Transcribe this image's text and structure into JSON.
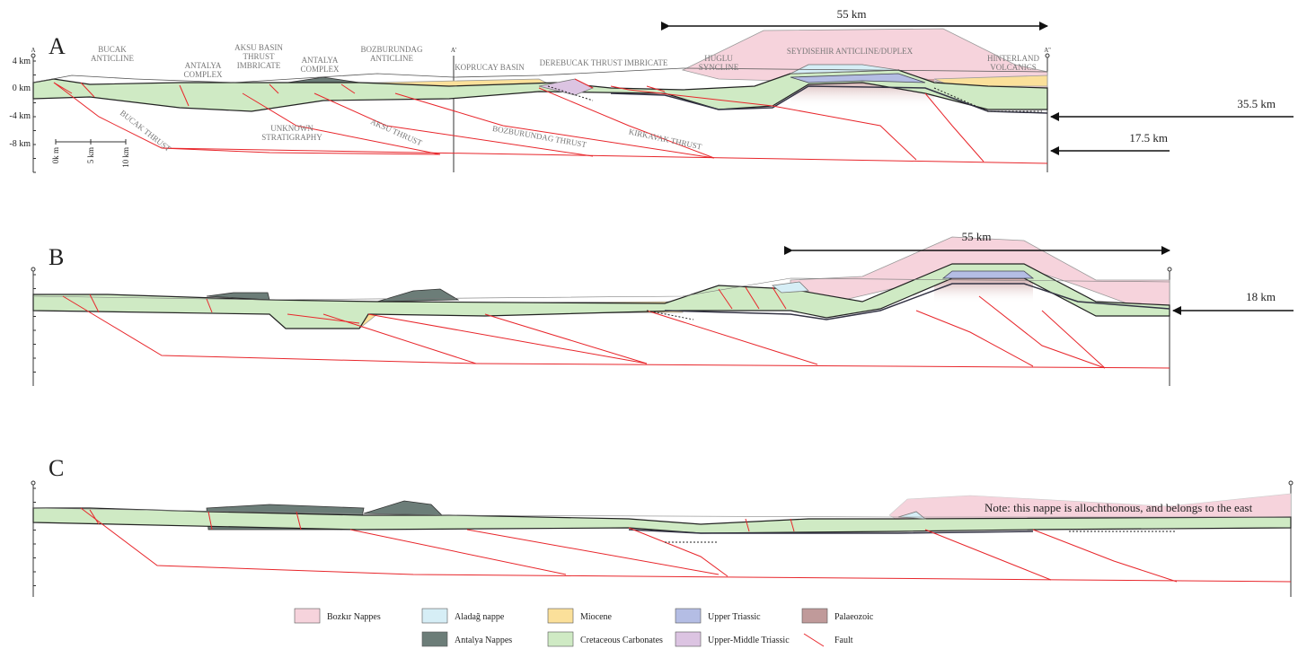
{
  "panels": [
    {
      "letter": "A",
      "section_ends": [
        "A",
        "A'",
        "A''"
      ],
      "depth_ticks": [
        "4 km",
        "0 km",
        "-4 km",
        "-8 km"
      ],
      "scale_bar": [
        "0k m",
        "5 km",
        "10 km"
      ],
      "labels": [
        [
          "BUCAK",
          "ANTICLINE"
        ],
        [
          "ANTALYA",
          "COMPLEX"
        ],
        [
          "AKSU BASIN",
          "THRUST",
          "IMBRICATE"
        ],
        [
          "ANTALYA",
          "COMPLEX"
        ],
        [
          "BOZBURUNDAG",
          "ANTICLINE"
        ],
        [
          "KOPRUCAY BASIN"
        ],
        [
          "DEREBUCAK THRUST IMBRICATE"
        ],
        [
          "HUGLU",
          "SYNCLINE"
        ],
        [
          "SEYDISEHIR ANTICLINE/DUPLEX"
        ],
        [
          "HINTERLAND",
          "VOLCANICS"
        ],
        [
          "UNKNOWN",
          "STRATIGRAPHY"
        ]
      ],
      "thrusts": [
        "BUCAK THRUST",
        "AKSU THRUST",
        "BOZBURUNDAG THRUST",
        "KIRKAVAK THRUST"
      ],
      "measures": [
        "55 km",
        "35.5 km",
        "17.5 km"
      ]
    },
    {
      "letter": "B",
      "measures": [
        "55 km",
        "18 km"
      ]
    },
    {
      "letter": "C",
      "note": "Note: this nappe is allochthonous, and belongs to the east"
    }
  ],
  "legend": [
    {
      "name": "Bozkır Nappes",
      "color": "#f6d3dc"
    },
    {
      "name": "Aladağ nappe",
      "color": "#d6eef6"
    },
    {
      "name": "Miocene",
      "color": "#fbe09a"
    },
    {
      "name": "Upper Triassic",
      "color": "#b4bde4"
    },
    {
      "name": "Palaeozoic",
      "color": "#c09a9a"
    },
    {
      "name": "Antalya Nappes",
      "color": "#6c7d78"
    },
    {
      "name": "Cretaceous Carbonates",
      "color": "#cfeac4"
    },
    {
      "name": "Upper-Middle Triassic",
      "color": "#dcc4e2"
    },
    {
      "name": "Fault",
      "color": "#e8262b"
    }
  ]
}
